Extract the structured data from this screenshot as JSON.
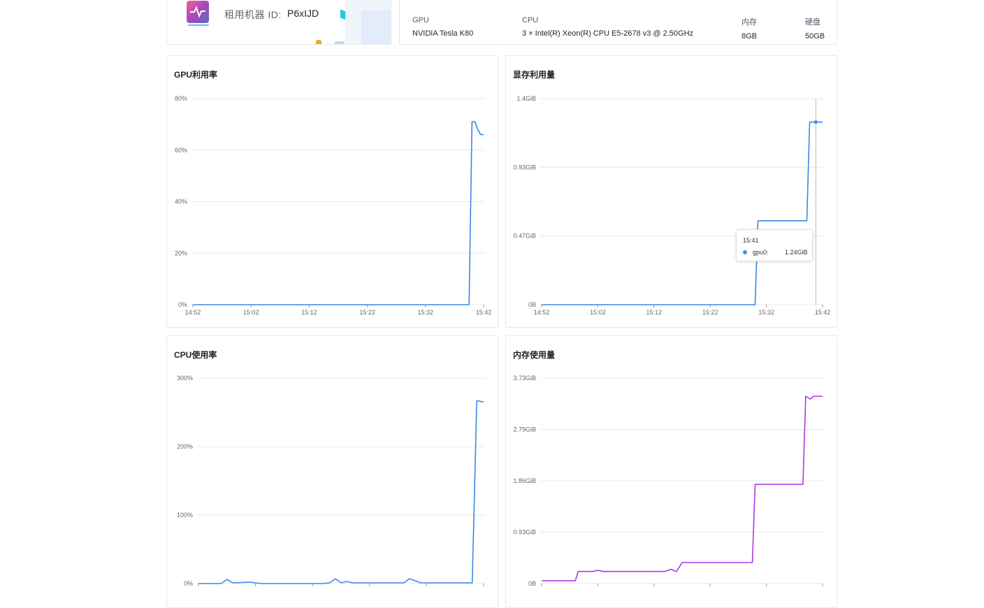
{
  "machine": {
    "id_label": "租用机器 ID:",
    "id_value": "P6xIJD"
  },
  "specs": [
    {
      "head": "GPU",
      "value": "NVIDIA Tesla K80"
    },
    {
      "head": "CPU",
      "value": "3 × Intel(R) Xeon(R) CPU E5-2678 v3 @ 2.50GHz"
    },
    {
      "head": "内存",
      "value": "8GB"
    },
    {
      "head": "硬盘",
      "value": "50GB"
    }
  ],
  "colors": {
    "blue": "#3d86e6",
    "purple": "#a93be0",
    "grid": "#e8e8e8"
  },
  "chart_data": [
    {
      "type": "line",
      "title": "GPU利用率",
      "x_ticks": [
        "14:52",
        "15:02",
        "15:12",
        "15:22",
        "15:32",
        "15:42"
      ],
      "y_ticks": [
        "0%",
        "20%",
        "40%",
        "60%",
        "80%"
      ],
      "ylim": [
        0,
        80
      ],
      "series": [
        {
          "values": [
            [
              0,
              0
            ],
            [
              47.5,
              0
            ],
            [
              48,
              71
            ],
            [
              48.5,
              71
            ],
            [
              49,
              68
            ],
            [
              49.5,
              66
            ],
            [
              50,
              66
            ]
          ]
        }
      ]
    },
    {
      "type": "line",
      "title": "显存利用量",
      "x_ticks": [
        "14:52",
        "15:02",
        "15:12",
        "15:22",
        "15:32",
        "15:42"
      ],
      "y_ticks": [
        "0B",
        "0.47GiB",
        "0.93GiB",
        "1.4GiB"
      ],
      "ylim": [
        0,
        1.4
      ],
      "series": [
        {
          "name": "gpu0",
          "values": [
            [
              0,
              0
            ],
            [
              38,
              0
            ],
            [
              38.5,
              0.57
            ],
            [
              47.2,
              0.57
            ],
            [
              47.7,
              1.24
            ],
            [
              50,
              1.24
            ]
          ]
        }
      ],
      "tooltip": {
        "time": "15:41",
        "series": "gpu0:",
        "value": "1.24GiB"
      }
    },
    {
      "type": "line",
      "title": "CPU使用率",
      "y_ticks": [
        "0%",
        "100%",
        "200%",
        "300%"
      ],
      "ylim": [
        0,
        300
      ],
      "series": [
        {
          "values": [
            [
              0,
              0
            ],
            [
              4,
              0
            ],
            [
              5,
              6
            ],
            [
              6,
              1
            ],
            [
              9,
              2
            ],
            [
              11,
              0
            ],
            [
              22,
              0
            ],
            [
              23,
              1
            ],
            [
              24,
              7
            ],
            [
              25,
              1
            ],
            [
              26,
              3
            ],
            [
              27,
              1
            ],
            [
              36,
              1
            ],
            [
              37,
              7
            ],
            [
              38,
              4
            ],
            [
              39,
              1
            ],
            [
              47,
              1
            ],
            [
              48,
              1
            ],
            [
              48.8,
              267
            ],
            [
              50,
              265
            ]
          ]
        }
      ]
    },
    {
      "type": "line",
      "title": "内存使用量",
      "y_ticks": [
        "0B",
        "0.93GiB",
        "1.86GiB",
        "2.79GiB",
        "3.73GiB"
      ],
      "ylim": [
        0,
        3.73
      ],
      "series": [
        {
          "values": [
            [
              0,
              0.05
            ],
            [
              6,
              0.05
            ],
            [
              6.5,
              0.22
            ],
            [
              9,
              0.22
            ],
            [
              10,
              0.24
            ],
            [
              11,
              0.22
            ],
            [
              22,
              0.22
            ],
            [
              23,
              0.26
            ],
            [
              24,
              0.22
            ],
            [
              25,
              0.38
            ],
            [
              37.5,
              0.38
            ],
            [
              38,
              1.8
            ],
            [
              46.5,
              1.8
            ],
            [
              47,
              3.4
            ],
            [
              47.8,
              3.35
            ],
            [
              48.4,
              3.4
            ],
            [
              50,
              3.4
            ]
          ]
        }
      ]
    }
  ]
}
